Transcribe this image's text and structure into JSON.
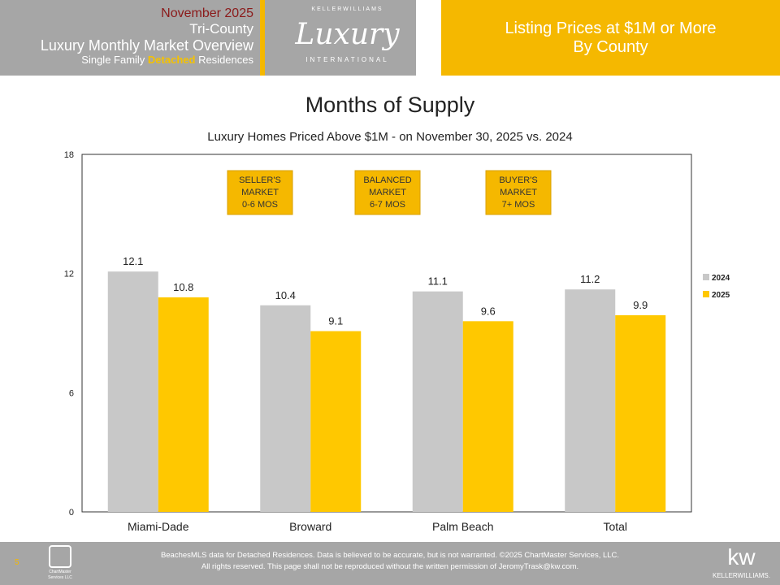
{
  "header": {
    "date": "November 2025",
    "region": "Tri-County",
    "report": "Luxury Monthly Market Overview",
    "type_pre": "Single Family ",
    "type_hl": "Detached",
    "type_post": " Residences",
    "logo": {
      "top": "KELLERWILLIAMS",
      "main": "Luxury",
      "bottom": "INTERNATIONAL"
    }
  },
  "title_box": {
    "line1": "Listing Prices at $1M or More",
    "line2": "By County"
  },
  "chart_data": {
    "type": "bar",
    "title": "Months of Supply",
    "subtitle": "Luxury Homes Priced Above $1M - on November 30,  2025 vs. 2024",
    "categories": [
      "Miami-Dade",
      "Broward",
      "Palm Beach",
      "Total"
    ],
    "series": [
      {
        "name": "2024",
        "color": "#c8c8c8",
        "values": [
          12.1,
          10.4,
          11.1,
          11.2
        ]
      },
      {
        "name": "2025",
        "color": "#ffc800",
        "values": [
          10.8,
          9.1,
          9.6,
          9.9
        ]
      }
    ],
    "ylim": [
      0,
      18
    ],
    "yticks": [
      0,
      6,
      12,
      18
    ],
    "legend": "right",
    "annotations": [
      {
        "lines": [
          "SELLER'S",
          "MARKET",
          "0-6 MOS"
        ]
      },
      {
        "lines": [
          "BALANCED",
          "MARKET",
          "6-7 MOS"
        ]
      },
      {
        "lines": [
          "BUYER'S",
          "MARKET",
          "7+ MOS"
        ]
      }
    ]
  },
  "footer": {
    "page": "5",
    "line1": "BeachesMLS data for Detached Residences.  Data is believed to be accurate, but is not warranted.  ©2025  ChartMaster Services, LLC.",
    "line2": "All rights reserved. This page shall not be reproduced without the written permission of JeromyTrask@kw.com.",
    "cm_logo": "ChartMaster Services LLC",
    "kw_logo": "kw",
    "kw_name": "KELLERWILLIAMS."
  }
}
